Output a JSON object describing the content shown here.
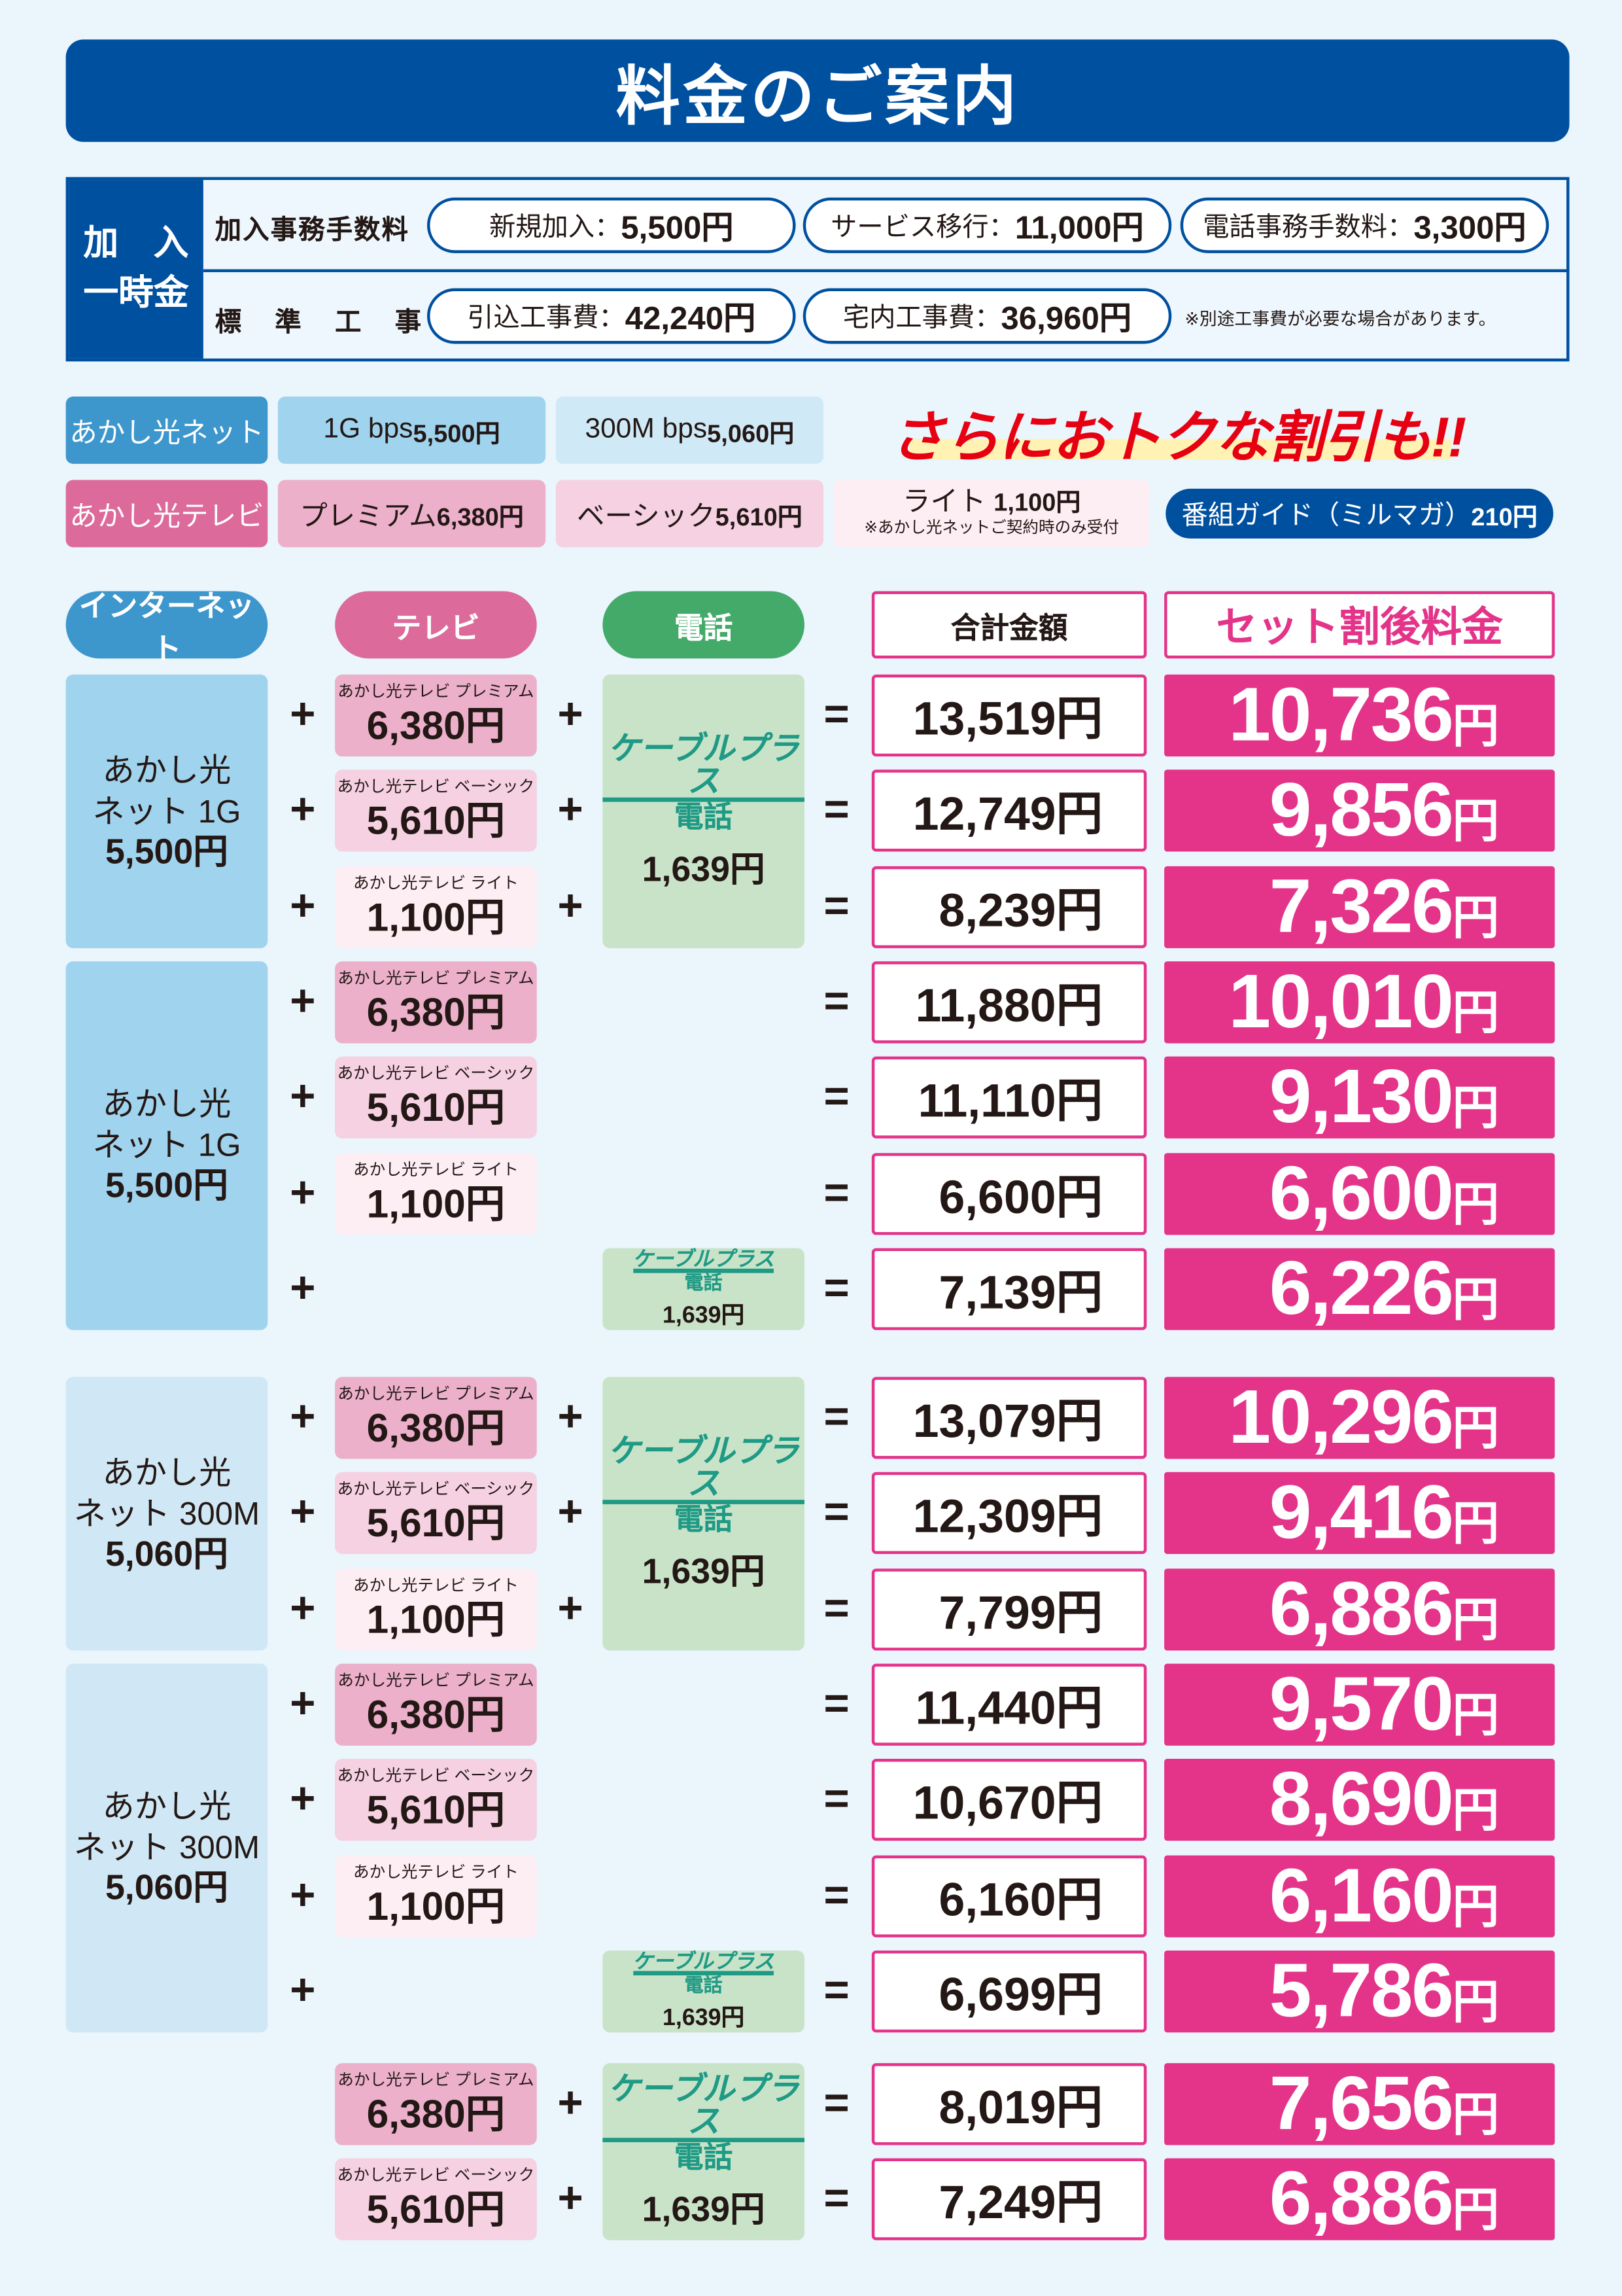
{
  "title": "料金のご案内",
  "initial_fees": {
    "header": [
      "加　入",
      "一時金"
    ],
    "rows": [
      {
        "label": "加入事務手数料",
        "items": [
          {
            "name": "新規加入：",
            "price": "5,500円"
          },
          {
            "name": "サービス移行：",
            "price": "11,000円"
          },
          {
            "name": "電話事務手数料：",
            "price": "3,300円"
          }
        ],
        "note": ""
      },
      {
        "label": "標 準 工 事 費",
        "items": [
          {
            "name": "引込工事費：",
            "price": "42,240円"
          },
          {
            "name": "宅内工事費：",
            "price": "36,960円"
          }
        ],
        "note": "※別途工事費が必要な場合があります。"
      }
    ]
  },
  "services": {
    "internet": {
      "label": "あかし光ネット",
      "plans": [
        {
          "name": "1G bps ",
          "price": "5,500円"
        },
        {
          "name": "300M bps ",
          "price": "5,060円"
        }
      ]
    },
    "tv": {
      "label": "あかし光テレビ",
      "plans": [
        {
          "name": "プレミアム ",
          "price": "6,380円"
        },
        {
          "name": "ベーシック ",
          "price": "5,610円"
        },
        {
          "name": "ライト ",
          "price": "1,100円",
          "note": "※あかし光ネットご契約時のみ受付"
        }
      ]
    },
    "guide": {
      "name": "番組ガイド（ミルマガ） ",
      "price": "210円"
    },
    "promo": "さらにおトクな割引も!!"
  },
  "columns": {
    "internet": "インターネット",
    "tv": "テレビ",
    "phone": "電話",
    "total": "合計金額",
    "final": "セット割後料金"
  },
  "phone": {
    "logo": "ケーブルプラス",
    "label": "電話",
    "price": "1,639円"
  },
  "yen": "円",
  "groups": [
    {
      "internet": {
        "line1": "あかし光",
        "line2": "ネット 1G",
        "price": "5,500円"
      },
      "color": "#a0d3ee",
      "rows": [
        {
          "tv_label": "あかし光テレビ プレミアム",
          "tv_price": "6,380円",
          "phone": true,
          "total": "13,519円",
          "final": "10,736"
        },
        {
          "tv_label": "あかし光テレビ ベーシック",
          "tv_price": "5,610円",
          "phone": true,
          "total": "12,749円",
          "final": "9,856"
        },
        {
          "tv_label": "あかし光テレビ ライト",
          "tv_price": "1,100円",
          "phone": true,
          "total": "8,239円",
          "final": "7,326"
        }
      ]
    },
    {
      "internet": {
        "line1": "あかし光",
        "line2": "ネット 1G",
        "price": "5,500円"
      },
      "color": "#a0d3ee",
      "rows": [
        {
          "tv_label": "あかし光テレビ プレミアム",
          "tv_price": "6,380円",
          "phone": false,
          "total": "11,880円",
          "final": "10,010"
        },
        {
          "tv_label": "あかし光テレビ ベーシック",
          "tv_price": "5,610円",
          "phone": false,
          "total": "11,110円",
          "final": "9,130"
        },
        {
          "tv_label": "あかし光テレビ ライト",
          "tv_price": "1,100円",
          "phone": false,
          "total": "6,600円",
          "final": "6,600"
        },
        {
          "tv_label": null,
          "tv_price": null,
          "phone": true,
          "total": "7,139円",
          "final": "6,226"
        }
      ]
    },
    {
      "internet": {
        "line1": "あかし光",
        "line2": "ネット 300M",
        "price": "5,060円"
      },
      "color": "#d0e8f5",
      "rows": [
        {
          "tv_label": "あかし光テレビ プレミアム",
          "tv_price": "6,380円",
          "phone": true,
          "total": "13,079円",
          "final": "10,296"
        },
        {
          "tv_label": "あかし光テレビ ベーシック",
          "tv_price": "5,610円",
          "phone": true,
          "total": "12,309円",
          "final": "9,416"
        },
        {
          "tv_label": "あかし光テレビ ライト",
          "tv_price": "1,100円",
          "phone": true,
          "total": "7,799円",
          "final": "6,886"
        }
      ]
    },
    {
      "internet": {
        "line1": "あかし光",
        "line2": "ネット 300M",
        "price": "5,060円"
      },
      "color": "#d0e8f5",
      "rows": [
        {
          "tv_label": "あかし光テレビ プレミアム",
          "tv_price": "6,380円",
          "phone": false,
          "total": "11,440円",
          "final": "9,570"
        },
        {
          "tv_label": "あかし光テレビ ベーシック",
          "tv_price": "5,610円",
          "phone": false,
          "total": "10,670円",
          "final": "8,690"
        },
        {
          "tv_label": "あかし光テレビ ライト",
          "tv_price": "1,100円",
          "phone": false,
          "total": "6,160円",
          "final": "6,160"
        },
        {
          "tv_label": null,
          "tv_price": null,
          "phone": true,
          "total": "6,699円",
          "final": "5,786"
        }
      ]
    },
    {
      "internet": null,
      "rows": [
        {
          "tv_label": "あかし光テレビ プレミアム",
          "tv_price": "6,380円",
          "phone": true,
          "total": "8,019円",
          "final": "7,656"
        },
        {
          "tv_label": "あかし光テレビ ベーシック",
          "tv_price": "5,610円",
          "phone": true,
          "total": "7,249円",
          "final": "6,886"
        }
      ]
    }
  ],
  "colors": {
    "blue": "#0050a0",
    "pink": "#e4348a",
    "internet": "#3d97cc",
    "tv": "#dc6a9b",
    "phone": "#44aa6a",
    "premium": "#ecb0ca",
    "basic": "#f5d1e2",
    "lite": "#fdeef4",
    "promo": "#e60012"
  },
  "operators": {
    "plus": "+",
    "equals": "="
  }
}
